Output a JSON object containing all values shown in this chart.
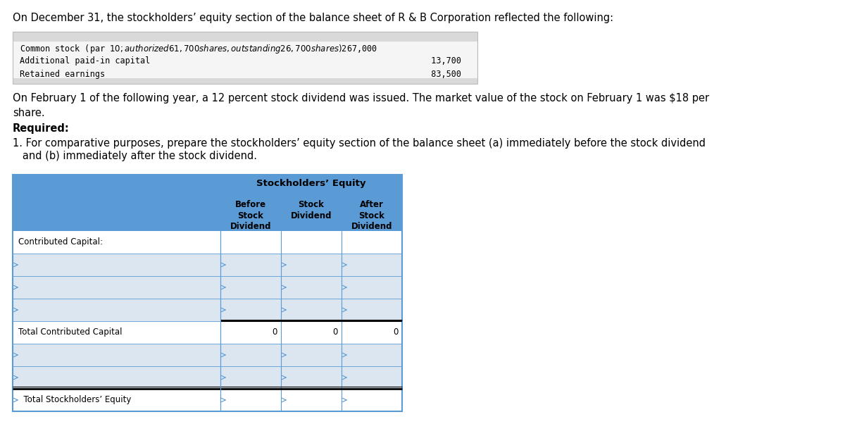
{
  "title_text": "On December 31, the stockholders’ equity section of the balance sheet of R & B Corporation reflected the following:",
  "info_box_lines": [
    [
      "Common stock (par $10; authorized 61,700 shares, outstanding 26,700 shares)  $267,000",
      ""
    ],
    [
      "Additional paid-in capital                                                        13,700",
      ""
    ],
    [
      "Retained earnings                                                                 83,500",
      ""
    ]
  ],
  "paragraph2": "On February 1 of the following year, a 12 percent stock dividend was issued. The market value of the stock on February 1 was $18 per\nshare.",
  "required_label": "Required:",
  "item1_line1": "1. For comparative purposes, prepare the stockholders’ equity section of the balance sheet (a) immediately before the stock dividend",
  "item1_line2": "   and (b) immediately after the stock dividend.",
  "table_header_main": "Stockholders’ Equity",
  "table_col_headers": [
    "Before\nStock\nDividend",
    "Stock\nDividend",
    "After\nStock\nDividend"
  ],
  "table_row_labels": [
    "Contributed Capital:",
    "",
    "",
    "",
    "Total Contributed Capital",
    "",
    "",
    "  Total Stockholders’ Equity"
  ],
  "table_values": [
    [
      "",
      "",
      ""
    ],
    [
      "",
      "",
      ""
    ],
    [
      "",
      "",
      ""
    ],
    [
      "",
      "",
      ""
    ],
    [
      "0",
      "0",
      "0"
    ],
    [
      "",
      "",
      ""
    ],
    [
      "",
      "",
      ""
    ],
    [
      "",
      "",
      ""
    ]
  ],
  "header_bg": "#5b9bd5",
  "row_alt_bg": "#c5d9f1",
  "row_white_bg": "#ffffff",
  "border_color": "#5b9bd5",
  "dark_border": "#1f3864",
  "info_box_bg": "#d9d9d9",
  "info_box_border": "#aaaaaa",
  "bg_color": "#ffffff"
}
